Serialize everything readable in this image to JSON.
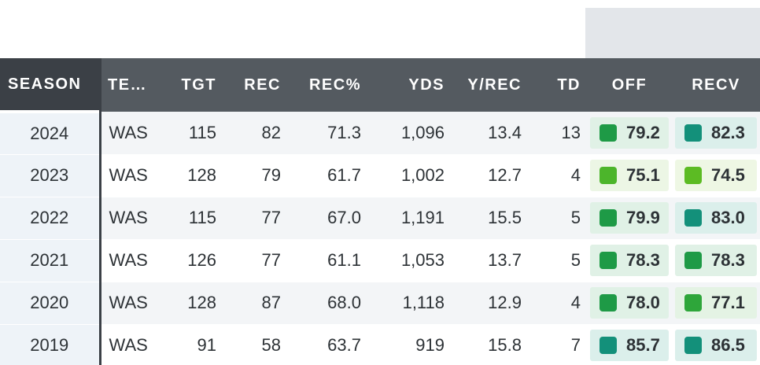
{
  "header": {
    "season": "SEASON",
    "team": "TE…",
    "tgt": "TGT",
    "rec": "REC",
    "rec_pct": "REC%",
    "yds": "YDS",
    "y_rec": "Y/REC",
    "td": "TD",
    "off": "OFF",
    "recv": "RECV"
  },
  "rows": [
    {
      "season": "2024",
      "team": "WAS",
      "tgt": "115",
      "rec": "82",
      "rec_pct": "71.3",
      "yds": "1,096",
      "y_rec": "13.4",
      "td": "13",
      "off": "79.2",
      "recv": "82.3"
    },
    {
      "season": "2023",
      "team": "WAS",
      "tgt": "128",
      "rec": "79",
      "rec_pct": "61.7",
      "yds": "1,002",
      "y_rec": "12.7",
      "td": "4",
      "off": "75.1",
      "recv": "74.5"
    },
    {
      "season": "2022",
      "team": "WAS",
      "tgt": "115",
      "rec": "77",
      "rec_pct": "67.0",
      "yds": "1,191",
      "y_rec": "15.5",
      "td": "5",
      "off": "79.9",
      "recv": "83.0"
    },
    {
      "season": "2021",
      "team": "WAS",
      "tgt": "126",
      "rec": "77",
      "rec_pct": "61.1",
      "yds": "1,053",
      "y_rec": "13.7",
      "td": "5",
      "off": "78.3",
      "recv": "78.3"
    },
    {
      "season": "2020",
      "team": "WAS",
      "tgt": "128",
      "rec": "87",
      "rec_pct": "68.0",
      "yds": "1,118",
      "y_rec": "12.9",
      "td": "4",
      "off": "78.0",
      "recv": "77.1"
    },
    {
      "season": "2019",
      "team": "WAS",
      "tgt": "91",
      "rec": "58",
      "rec_pct": "63.7",
      "yds": "919",
      "y_rec": "15.8",
      "td": "7",
      "off": "85.7",
      "recv": "86.5"
    }
  ],
  "grade_colors": {
    "off": [
      {
        "swatch": "#1e9a46",
        "bg": "#e0f1e6"
      },
      {
        "swatch": "#4cb52b",
        "bg": "#ecf6e5"
      },
      {
        "swatch": "#1e9a46",
        "bg": "#e0f1e6"
      },
      {
        "swatch": "#1e9a46",
        "bg": "#e0f1e6"
      },
      {
        "swatch": "#1e9a46",
        "bg": "#e0f1e6"
      },
      {
        "swatch": "#13907a",
        "bg": "#dbefeb"
      }
    ],
    "recv": [
      {
        "swatch": "#13907a",
        "bg": "#dbefeb"
      },
      {
        "swatch": "#5cbb23",
        "bg": "#eef7e4"
      },
      {
        "swatch": "#13907a",
        "bg": "#dbefeb"
      },
      {
        "swatch": "#1e9a46",
        "bg": "#e0f1e6"
      },
      {
        "swatch": "#2ea63a",
        "bg": "#e4f3e4"
      },
      {
        "swatch": "#13907a",
        "bg": "#dbefeb"
      }
    ]
  },
  "colors": {
    "header_bg": "#545a60",
    "header_active_bg": "#3b4046",
    "row_alt_bg": "#f3f5f7"
  }
}
